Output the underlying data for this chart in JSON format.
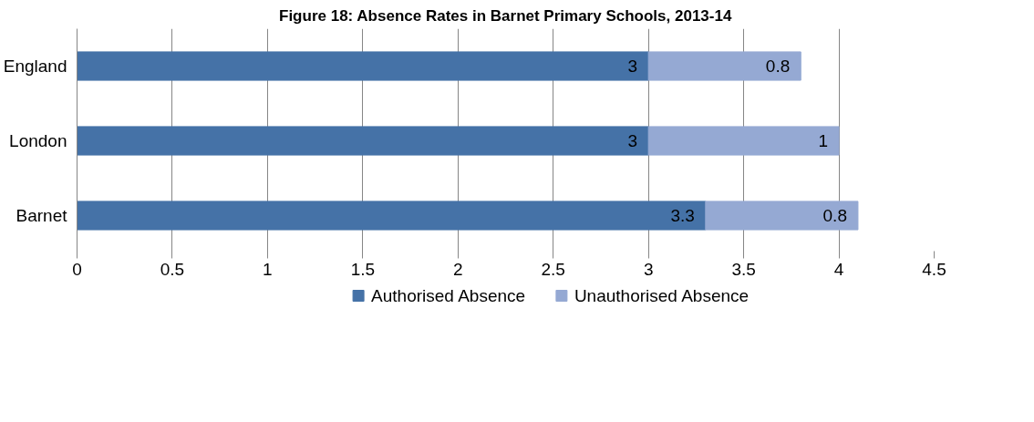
{
  "chart_data": {
    "type": "bar",
    "orientation": "horizontal",
    "stacked": true,
    "title": "Figure 18: Absence Rates in Barnet Primary Schools, 2013-14",
    "categories": [
      "England",
      "London",
      "Barnet"
    ],
    "series": [
      {
        "name": "Authorised Absence",
        "color": "#4572a7",
        "values": [
          3,
          3,
          3.3
        ]
      },
      {
        "name": "Unauthorised Absence",
        "color": "#95a9d3",
        "values": [
          0.8,
          1,
          0.8
        ]
      }
    ],
    "xlim": [
      0,
      4.5
    ],
    "xticks": [
      0,
      0.5,
      1,
      1.5,
      2,
      2.5,
      3,
      3.5,
      4,
      4.5
    ],
    "grid": "x",
    "legend": "bottom",
    "data_labels": true
  }
}
